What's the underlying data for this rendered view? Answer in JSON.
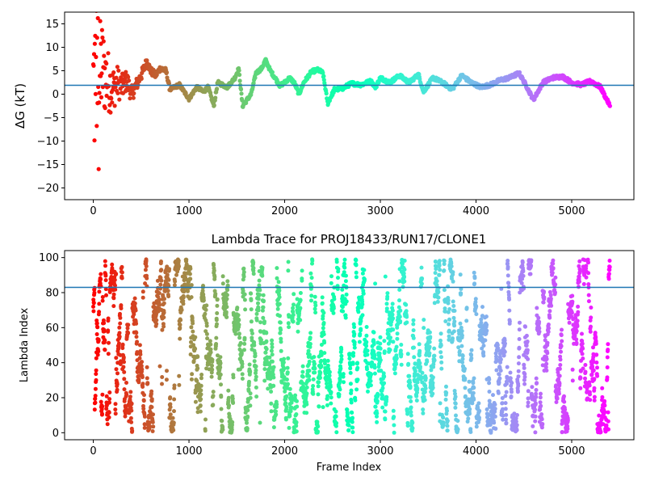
{
  "chart_data": [
    {
      "type": "scatter",
      "title": "",
      "xlabel": "",
      "ylabel": "ΔG (kT)",
      "xlim": [
        -300,
        5650
      ],
      "ylim": [
        -22.5,
        17.5
      ],
      "xticks": [
        0,
        1000,
        2000,
        3000,
        4000,
        5000
      ],
      "yticks": [
        -20,
        -15,
        -10,
        -5,
        0,
        5,
        10,
        15
      ],
      "hline": 1.9,
      "hline_color": "#1f77b4",
      "colormap": "rainbow",
      "x_range": [
        0,
        5400
      ],
      "trace_y": [
        [
          0,
          0
        ],
        [
          30,
          6
        ],
        [
          60,
          3
        ],
        [
          90,
          6
        ],
        [
          120,
          4
        ],
        [
          150,
          3
        ],
        [
          200,
          1
        ],
        [
          250,
          2.5
        ],
        [
          300,
          1.5
        ],
        [
          350,
          3
        ],
        [
          400,
          0
        ],
        [
          450,
          2
        ],
        [
          500,
          4
        ],
        [
          560,
          7
        ],
        [
          600,
          5
        ],
        [
          650,
          4
        ],
        [
          700,
          5.5
        ],
        [
          760,
          5
        ],
        [
          800,
          1
        ],
        [
          900,
          2
        ],
        [
          950,
          0.5
        ],
        [
          1000,
          -1
        ],
        [
          1080,
          1.5
        ],
        [
          1150,
          0.5
        ],
        [
          1200,
          1.5
        ],
        [
          1260,
          -2.5
        ],
        [
          1300,
          2.5
        ],
        [
          1400,
          1.5
        ],
        [
          1480,
          3.5
        ],
        [
          1520,
          5.5
        ],
        [
          1560,
          -2.5
        ],
        [
          1650,
          0
        ],
        [
          1700,
          4.5
        ],
        [
          1760,
          5.5
        ],
        [
          1800,
          7.3
        ],
        [
          1850,
          5
        ],
        [
          1900,
          3.5
        ],
        [
          1950,
          1.8
        ],
        [
          2000,
          2.5
        ],
        [
          2050,
          3.5
        ],
        [
          2100,
          2.5
        ],
        [
          2150,
          0
        ],
        [
          2200,
          2.5
        ],
        [
          2280,
          4.8
        ],
        [
          2350,
          5.2
        ],
        [
          2400,
          4.5
        ],
        [
          2450,
          -2
        ],
        [
          2520,
          1
        ],
        [
          2600,
          1.2
        ],
        [
          2700,
          2.3
        ],
        [
          2800,
          2
        ],
        [
          2900,
          2.8
        ],
        [
          2950,
          1.5
        ],
        [
          3000,
          3.5
        ],
        [
          3100,
          2.5
        ],
        [
          3200,
          4
        ],
        [
          3300,
          2.5
        ],
        [
          3400,
          4.2
        ],
        [
          3450,
          0.5
        ],
        [
          3550,
          3.5
        ],
        [
          3650,
          2.5
        ],
        [
          3750,
          1
        ],
        [
          3850,
          4
        ],
        [
          3950,
          2.5
        ],
        [
          4050,
          1.5
        ],
        [
          4150,
          2
        ],
        [
          4250,
          3
        ],
        [
          4350,
          3.5
        ],
        [
          4450,
          4.5
        ],
        [
          4520,
          2
        ],
        [
          4600,
          -1.2
        ],
        [
          4700,
          2.5
        ],
        [
          4800,
          3.5
        ],
        [
          4900,
          3.8
        ],
        [
          5000,
          2.5
        ],
        [
          5100,
          2
        ],
        [
          5200,
          2.8
        ],
        [
          5300,
          1.5
        ],
        [
          5400,
          -2.5
        ]
      ]
    },
    {
      "type": "scatter",
      "title": "Lambda Trace for PROJ18433/RUN17/CLONE1",
      "xlabel": "Frame Index",
      "ylabel": "Lambda Index",
      "xlim": [
        -300,
        5650
      ],
      "ylim": [
        -4,
        104
      ],
      "xticks": [
        0,
        1000,
        2000,
        3000,
        4000,
        5000
      ],
      "yticks": [
        0,
        20,
        40,
        60,
        80,
        100
      ],
      "hline": 83,
      "hline_color": "#1f77b4",
      "colormap": "rainbow",
      "x_range": [
        0,
        5400
      ],
      "y_range": [
        0,
        99
      ]
    }
  ]
}
